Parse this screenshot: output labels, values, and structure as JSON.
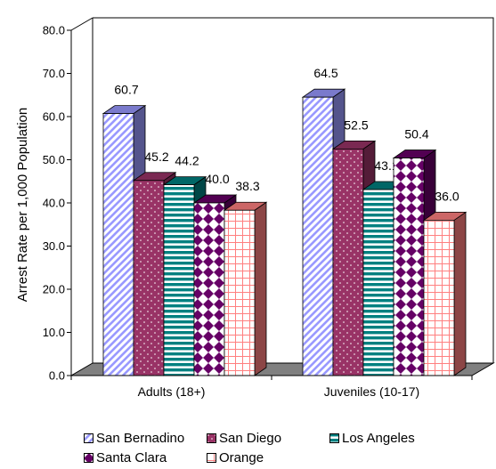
{
  "chart_data": {
    "type": "bar",
    "categories": [
      "Adults (18+)",
      "Juveniles (10-17)"
    ],
    "series": [
      {
        "name": "San Bernadino",
        "values": [
          60.7,
          64.5
        ],
        "color": "#9999ff",
        "pattern": "diagonal-stripes"
      },
      {
        "name": "San Diego",
        "values": [
          45.2,
          52.5
        ],
        "color": "#993366",
        "pattern": "dots"
      },
      {
        "name": "Los Angeles",
        "values": [
          44.2,
          43.1
        ],
        "color": "#008080",
        "pattern": "horizontal-stripes"
      },
      {
        "name": "Santa Clara",
        "values": [
          40.0,
          50.4
        ],
        "color": "#660066",
        "pattern": "diamonds"
      },
      {
        "name": "Orange",
        "values": [
          38.3,
          36.0
        ],
        "color": "#ff8080",
        "pattern": "grid"
      }
    ],
    "title": "",
    "xlabel": "",
    "ylabel": "Arrest Rate per 1,000 Population",
    "ylim": [
      0,
      80
    ],
    "yticks": [
      "0.0",
      "10.0",
      "20.0",
      "30.0",
      "40.0",
      "50.0",
      "60.0",
      "70.0",
      "80.0"
    ],
    "legend_position": "bottom",
    "style": "3d-clustered-column",
    "floor_color": "#808080"
  }
}
